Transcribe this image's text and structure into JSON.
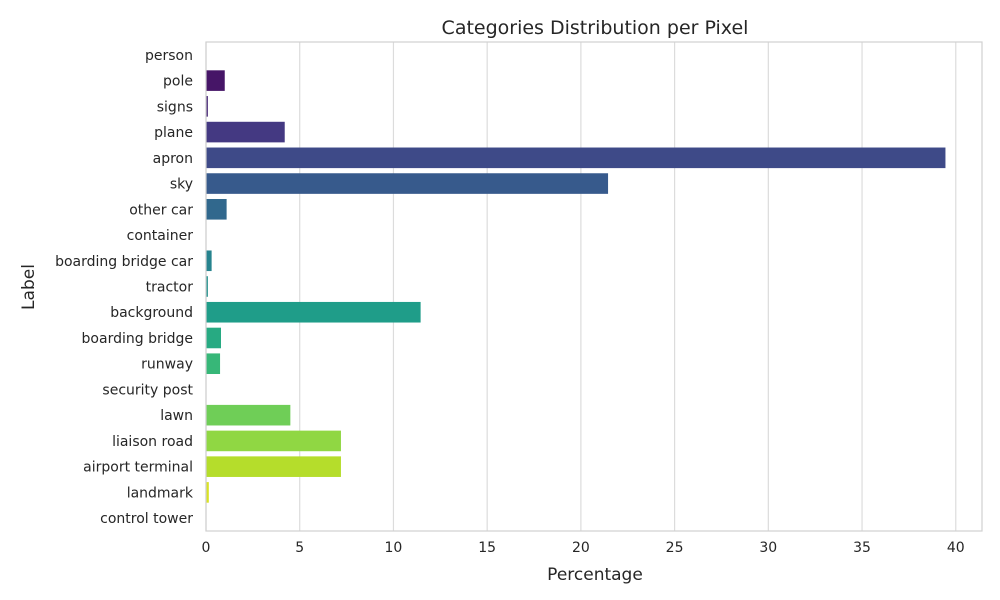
{
  "chart_data": {
    "type": "bar",
    "orientation": "horizontal",
    "title": "Categories Distribution per Pixel",
    "xlabel": "Percentage",
    "ylabel": "Label",
    "xlim": [
      0,
      41.4
    ],
    "xticks": [
      0,
      5,
      10,
      15,
      20,
      25,
      30,
      35,
      40
    ],
    "grid": true,
    "categories": [
      "person",
      "pole",
      "signs",
      "plane",
      "apron",
      "sky",
      "other car",
      "container",
      "boarding bridge car",
      "tractor",
      "background",
      "boarding bridge",
      "runway",
      "security post",
      "lawn",
      "liaison road",
      "airport terminal",
      "landmark",
      "control tower"
    ],
    "values": [
      0.02,
      1.0,
      0.1,
      4.2,
      39.45,
      21.45,
      1.1,
      0.02,
      0.3,
      0.1,
      11.45,
      0.8,
      0.75,
      0.02,
      4.5,
      7.2,
      7.2,
      0.15,
      0.02
    ],
    "colors": [
      "#440154",
      "#482173",
      "#433e85",
      "#38598c",
      "#2d708e",
      "#25858e",
      "#1e9b8a",
      "#2ab07f",
      "#52c569",
      "#86d549",
      "#c2df23",
      "#fde725"
    ],
    "palette": "viridis"
  }
}
